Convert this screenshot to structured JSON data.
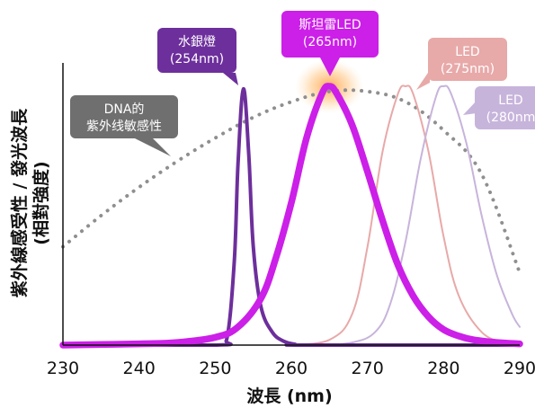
{
  "chart_data": {
    "type": "line",
    "xlabel": "波長 (nm)",
    "ylabel_line1": "紫外線感受性 / 發光波長",
    "ylabel_line2": "(相對強度)",
    "xlim": [
      230,
      290
    ],
    "ylim": [
      0,
      1
    ],
    "x_ticks": [
      "230",
      "240",
      "250",
      "260",
      "270",
      "280",
      "290"
    ],
    "grid": false,
    "colors": {
      "hg": "#6d2f9c",
      "led265": "#cc1fe8",
      "led275": "#e8a9a9",
      "led280": "#c7b4db",
      "dna": "#8f8f8f",
      "glow": "#ffb15c",
      "axis": "#111111",
      "callout_dna": "#6f6f6f"
    },
    "series": [
      {
        "key": "dna",
        "name": "DNA的\n紫外线敏感性",
        "style": "dotted",
        "x": [
          230,
          235,
          240,
          245,
          250,
          255,
          260,
          265,
          270,
          275,
          280,
          285,
          290
        ],
        "y": [
          0.38,
          0.5,
          0.61,
          0.71,
          0.8,
          0.88,
          0.94,
          0.98,
          0.98,
          0.94,
          0.83,
          0.66,
          0.28
        ]
      },
      {
        "key": "hg",
        "name": "水銀燈\n(254nm)",
        "style": "solid",
        "x": [
          230,
          250,
          251.5,
          252.5,
          253,
          253.7,
          254.4,
          255,
          256,
          257.5,
          259,
          260.5,
          262,
          290
        ],
        "y": [
          0,
          0,
          0.02,
          0.32,
          0.7,
          0.99,
          0.74,
          0.38,
          0.15,
          0.05,
          0.015,
          0.003,
          0,
          0
        ]
      },
      {
        "key": "led265",
        "name": "斯坦雷LED\n(265nm)",
        "style": "solid-thick",
        "x": [
          230,
          240,
          245,
          250,
          253,
          256,
          258,
          260,
          262,
          264,
          265,
          266,
          268,
          270,
          272,
          274,
          276,
          278,
          280,
          282,
          284,
          287,
          290
        ],
        "y": [
          0,
          0.005,
          0.01,
          0.03,
          0.07,
          0.18,
          0.34,
          0.55,
          0.8,
          0.97,
          1.0,
          0.97,
          0.85,
          0.67,
          0.48,
          0.31,
          0.19,
          0.11,
          0.06,
          0.035,
          0.02,
          0.01,
          0.005
        ]
      },
      {
        "key": "led275",
        "name": "LED\n(275nm)",
        "style": "solid-thin",
        "x": [
          260,
          265,
          268,
          270,
          272,
          274,
          275,
          276,
          278,
          280,
          282,
          285,
          288,
          290
        ],
        "y": [
          0,
          0.02,
          0.12,
          0.38,
          0.75,
          0.97,
          1.0,
          0.97,
          0.75,
          0.42,
          0.19,
          0.05,
          0.01,
          0
        ]
      },
      {
        "key": "led280",
        "name": "LED\n(280nm)",
        "style": "solid-thin",
        "x": [
          264,
          268,
          271,
          273,
          275,
          277,
          279,
          280,
          281,
          283,
          285,
          287,
          289,
          290
        ],
        "y": [
          0,
          0.01,
          0.05,
          0.16,
          0.4,
          0.72,
          0.96,
          1.0,
          0.97,
          0.78,
          0.5,
          0.27,
          0.12,
          0.07
        ]
      }
    ],
    "annotations": [
      {
        "key": "dna",
        "line1": "DNA的",
        "line2": "紫外线敏感性"
      },
      {
        "key": "hg",
        "line1": "水銀燈",
        "line2": "(254nm)"
      },
      {
        "key": "led265",
        "line1": "斯坦雷LED",
        "line2": "(265nm)"
      },
      {
        "key": "led275",
        "line1": "LED",
        "line2": "(275nm)"
      },
      {
        "key": "led280",
        "line1": "LED",
        "line2": "(280nm"
      }
    ]
  }
}
